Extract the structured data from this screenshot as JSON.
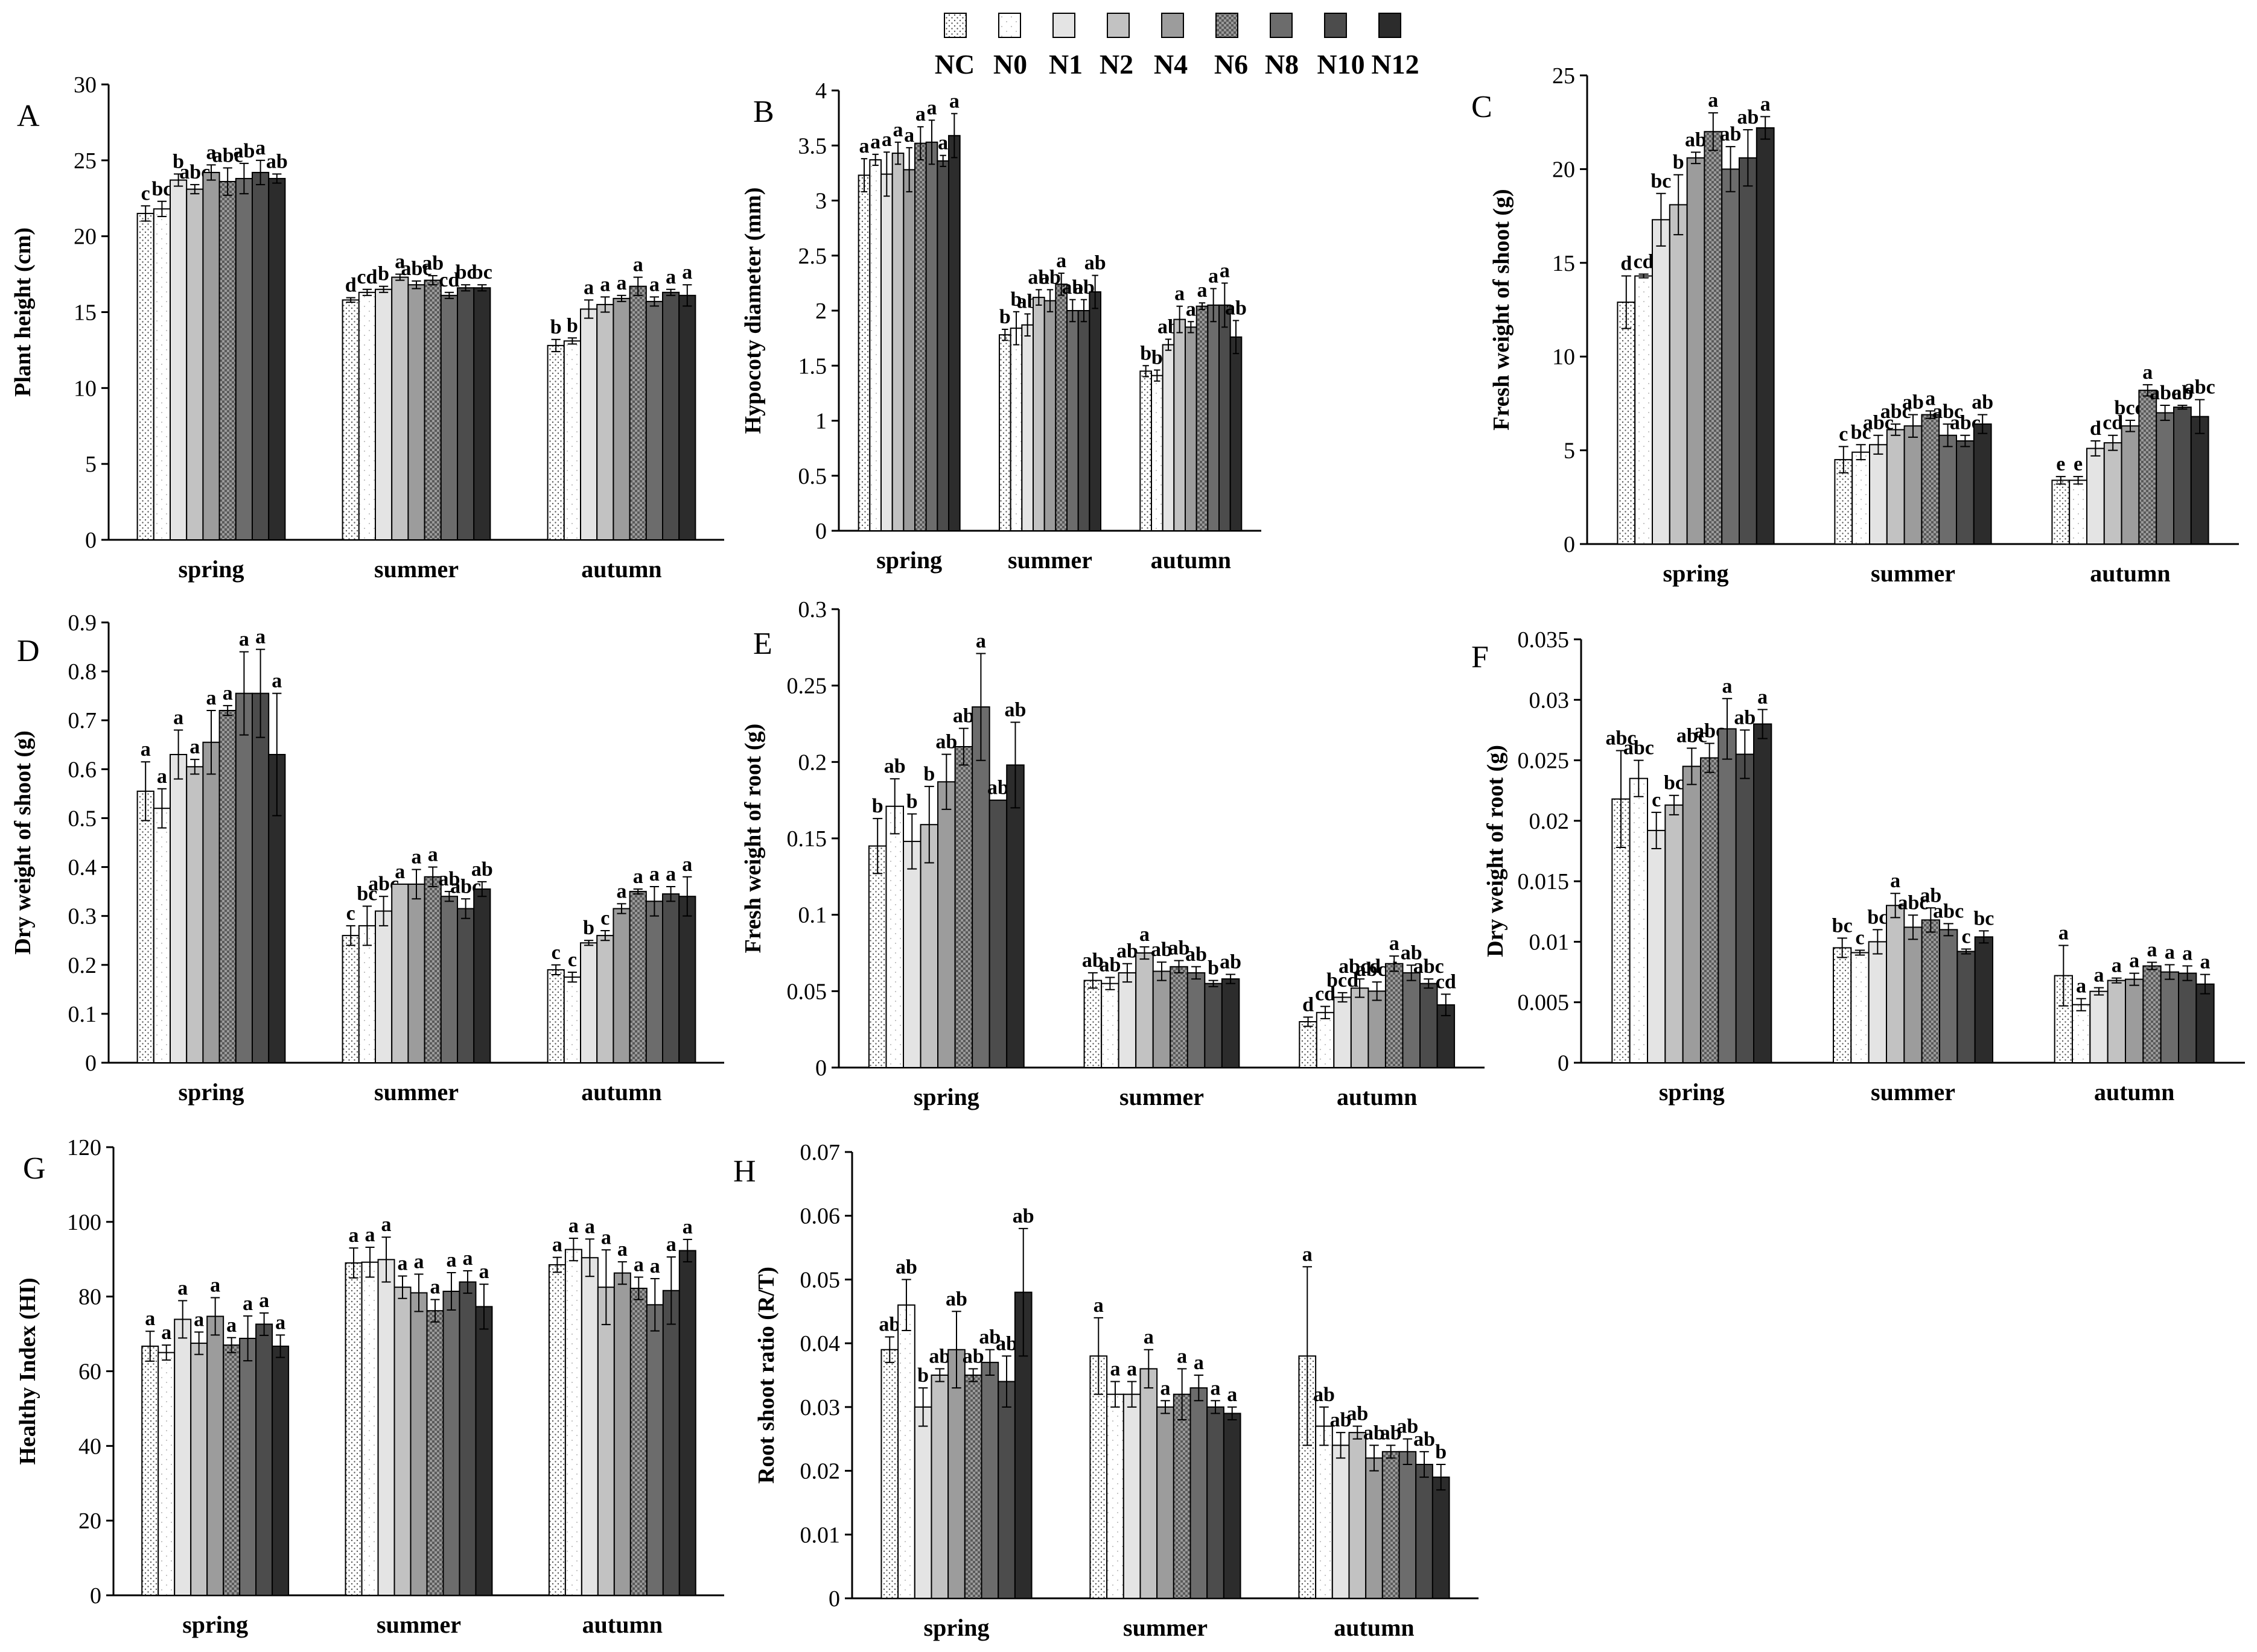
{
  "legend": {
    "entries": [
      "NC",
      "N0",
      "N1",
      "N2",
      "N4",
      "N6",
      "N8",
      "N10",
      "N12"
    ],
    "fills": [
      "#ffffff",
      "#ffffff",
      "#e4e4e4",
      "#c2c2c2",
      "#9c9c9c",
      "#8a8a8a",
      "#6c6c6c",
      "#4c4c4c",
      "#2c2c2c"
    ],
    "patterns": [
      "dots",
      "sparse",
      "none",
      "none",
      "none",
      "checker",
      "none",
      "none",
      "none"
    ]
  },
  "chart_data": [
    {
      "panel": "A",
      "type": "bar",
      "ylabel": "Plant height (cm)",
      "ylim": [
        0,
        30
      ],
      "yticks": [
        "0",
        "5",
        "10",
        "15",
        "20",
        "25",
        "30"
      ],
      "categories": [
        "spring",
        "summer",
        "autumn"
      ],
      "groups": [
        {
          "values": [
            21.5,
            21.8,
            23.7,
            23.1,
            24.2,
            23.6,
            23.8,
            24.2,
            23.8
          ],
          "errors": [
            0.5,
            0.5,
            0.4,
            0.3,
            0.5,
            0.9,
            1.0,
            0.8,
            0.3
          ],
          "letters": [
            "c",
            "bc",
            "b",
            "abc",
            "a",
            "abc",
            "ab",
            "a",
            "ab"
          ]
        },
        {
          "values": [
            15.8,
            16.3,
            16.5,
            17.3,
            16.8,
            17.1,
            16.1,
            16.6,
            16.6
          ],
          "errors": [
            0.15,
            0.2,
            0.2,
            0.2,
            0.25,
            0.3,
            0.2,
            0.2,
            0.2
          ],
          "letters": [
            "d",
            "cd",
            "b",
            "a",
            "abc",
            "ab",
            "cd",
            "bc",
            "bc"
          ]
        },
        {
          "values": [
            12.8,
            13.1,
            15.2,
            15.5,
            15.9,
            16.7,
            15.7,
            16.3,
            16.1
          ],
          "errors": [
            0.4,
            0.2,
            0.6,
            0.5,
            0.2,
            0.6,
            0.3,
            0.2,
            0.7
          ],
          "letters": [
            "b",
            "b",
            "a",
            "a",
            "a",
            "a",
            "a",
            "a",
            "a"
          ]
        }
      ]
    },
    {
      "panel": "B",
      "type": "bar",
      "ylabel": "Hypocoty diameter (mm)",
      "ylim": [
        0,
        4
      ],
      "yticks": [
        "0",
        "0.5",
        "1",
        "1.5",
        "2",
        "2.5",
        "3",
        "3.5",
        "4"
      ],
      "categories": [
        "spring",
        "summer",
        "autumn"
      ],
      "groups": [
        {
          "values": [
            3.23,
            3.37,
            3.24,
            3.43,
            3.28,
            3.52,
            3.53,
            3.36,
            3.59
          ],
          "errors": [
            0.15,
            0.05,
            0.2,
            0.1,
            0.2,
            0.15,
            0.2,
            0.05,
            0.2
          ],
          "letters": [
            "a",
            "a",
            "a",
            "a",
            "a",
            "a",
            "a",
            "a",
            "a"
          ]
        },
        {
          "values": [
            1.78,
            1.84,
            1.87,
            2.12,
            2.09,
            2.24,
            2.0,
            2.0,
            2.17
          ],
          "errors": [
            0.05,
            0.15,
            0.1,
            0.07,
            0.1,
            0.1,
            0.1,
            0.1,
            0.15
          ],
          "letters": [
            "b",
            "b",
            "ab",
            "ab",
            "ab",
            "a",
            "ab",
            "ab",
            "ab"
          ]
        },
        {
          "values": [
            1.45,
            1.41,
            1.69,
            1.92,
            1.85,
            2.04,
            2.05,
            2.05,
            1.76
          ],
          "errors": [
            0.05,
            0.05,
            0.05,
            0.12,
            0.05,
            0.03,
            0.15,
            0.2,
            0.15
          ],
          "letters": [
            "b",
            "b",
            "ab",
            "a",
            "a",
            "a",
            "a",
            "a",
            "ab"
          ]
        }
      ]
    },
    {
      "panel": "C",
      "type": "bar",
      "ylabel": "Fresh weight of shoot (g)",
      "ylim": [
        0,
        25
      ],
      "yticks": [
        "0",
        "5",
        "10",
        "15",
        "20",
        "25"
      ],
      "categories": [
        "spring",
        "summer",
        "autumn"
      ],
      "groups": [
        {
          "values": [
            12.9,
            14.3,
            17.3,
            18.1,
            20.6,
            22.0,
            20.0,
            20.6,
            22.2
          ],
          "errors": [
            1.4,
            0.1,
            1.4,
            1.6,
            0.3,
            1.0,
            1.2,
            1.5,
            0.6
          ],
          "letters": [
            "d",
            "cd",
            "bc",
            "b",
            "ab",
            "a",
            "ab",
            "ab",
            "a"
          ]
        },
        {
          "values": [
            4.5,
            4.9,
            5.3,
            6.1,
            6.3,
            6.9,
            5.8,
            5.5,
            6.4
          ],
          "errors": [
            0.7,
            0.4,
            0.5,
            0.3,
            0.6,
            0.2,
            0.6,
            0.3,
            0.5
          ],
          "letters": [
            "c",
            "bc",
            "abc",
            "abc",
            "ab",
            "a",
            "abc",
            "abc",
            "ab"
          ]
        },
        {
          "values": [
            3.4,
            3.4,
            5.1,
            5.4,
            6.3,
            8.2,
            7.0,
            7.3,
            6.8
          ],
          "errors": [
            0.2,
            0.2,
            0.4,
            0.4,
            0.3,
            0.3,
            0.4,
            0.1,
            0.9
          ],
          "letters": [
            "e",
            "e",
            "d",
            "cd",
            "bcd",
            "a",
            "abc",
            "ab",
            "abc"
          ]
        }
      ]
    },
    {
      "panel": "D",
      "type": "bar",
      "ylabel": "Dry weight of shoot (g)",
      "ylim": [
        0,
        0.9
      ],
      "yticks": [
        "0",
        "0.1",
        "0.2",
        "0.3",
        "0.4",
        "0.5",
        "0.6",
        "0.7",
        "0.8",
        "0.9"
      ],
      "categories": [
        "spring",
        "summer",
        "autumn"
      ],
      "groups": [
        {
          "values": [
            0.555,
            0.52,
            0.63,
            0.605,
            0.655,
            0.72,
            0.755,
            0.755,
            0.63
          ],
          "errors": [
            0.06,
            0.04,
            0.05,
            0.015,
            0.065,
            0.01,
            0.085,
            0.09,
            0.125
          ],
          "letters": [
            "a",
            "a",
            "a",
            "a",
            "a",
            "a",
            "a",
            "a",
            "a"
          ]
        },
        {
          "values": [
            0.26,
            0.28,
            0.31,
            0.365,
            0.365,
            0.38,
            0.34,
            0.315,
            0.355
          ],
          "errors": [
            0.02,
            0.04,
            0.03,
            0.0,
            0.03,
            0.02,
            0.01,
            0.02,
            0.015
          ],
          "letters": [
            "c",
            "bc",
            "abc",
            "a",
            "a",
            "a",
            "ab",
            "abc",
            "ab"
          ]
        },
        {
          "values": [
            0.19,
            0.175,
            0.245,
            0.26,
            0.315,
            0.35,
            0.33,
            0.345,
            0.34
          ],
          "errors": [
            0.01,
            0.01,
            0.005,
            0.01,
            0.01,
            0.005,
            0.03,
            0.015,
            0.04
          ],
          "letters": [
            "c",
            "c",
            "b",
            "c",
            "a",
            "a",
            "a",
            "a",
            "a"
          ]
        }
      ]
    },
    {
      "panel": "E",
      "type": "bar",
      "ylabel": "Fresh weight of root (g)",
      "ylim": [
        0,
        0.3
      ],
      "yticks": [
        "0",
        "0.05",
        "0.1",
        "0.15",
        "0.2",
        "0.25",
        "0.3"
      ],
      "categories": [
        "spring",
        "summer",
        "autumn"
      ],
      "groups": [
        {
          "values": [
            0.145,
            0.171,
            0.148,
            0.159,
            0.187,
            0.21,
            0.236,
            0.175,
            0.198
          ],
          "errors": [
            0.018,
            0.018,
            0.018,
            0.025,
            0.018,
            0.012,
            0.035,
            0.0,
            0.028
          ],
          "letters": [
            "b",
            "ab",
            "b",
            "b",
            "ab",
            "ab",
            "a",
            "ab",
            "ab"
          ]
        },
        {
          "values": [
            0.057,
            0.055,
            0.062,
            0.075,
            0.063,
            0.066,
            0.062,
            0.055,
            0.058
          ],
          "errors": [
            0.005,
            0.004,
            0.006,
            0.004,
            0.006,
            0.004,
            0.004,
            0.002,
            0.003
          ],
          "letters": [
            "ab",
            "ab",
            "ab",
            "a",
            "ab",
            "ab",
            "ab",
            "b",
            "ab"
          ]
        },
        {
          "values": [
            0.03,
            0.036,
            0.046,
            0.052,
            0.05,
            0.068,
            0.062,
            0.055,
            0.041
          ],
          "errors": [
            0.003,
            0.004,
            0.003,
            0.006,
            0.006,
            0.005,
            0.005,
            0.003,
            0.007
          ],
          "letters": [
            "d",
            "cd",
            "bcd",
            "abcd",
            "abcd",
            "a",
            "ab",
            "abc",
            "cd"
          ]
        }
      ]
    },
    {
      "panel": "F",
      "type": "bar",
      "ylabel": "Dry weight of root (g)",
      "ylim": [
        0,
        0.035
      ],
      "yticks": [
        "0",
        "0.005",
        "0.01",
        "0.015",
        "0.02",
        "0.025",
        "0.03",
        "0.035"
      ],
      "categories": [
        "spring",
        "summer",
        "autumn"
      ],
      "groups": [
        {
          "values": [
            0.0218,
            0.0235,
            0.0192,
            0.0213,
            0.0245,
            0.0252,
            0.0276,
            0.0255,
            0.028
          ],
          "errors": [
            0.004,
            0.0015,
            0.0015,
            0.0008,
            0.0015,
            0.0012,
            0.0025,
            0.002,
            0.0012
          ],
          "letters": [
            "abc",
            "abc",
            "c",
            "bc",
            "abc",
            "abc",
            "a",
            "ab",
            "a"
          ]
        },
        {
          "values": [
            0.0095,
            0.0091,
            0.01,
            0.013,
            0.0112,
            0.0118,
            0.011,
            0.0092,
            0.0104
          ],
          "errors": [
            0.0008,
            0.0002,
            0.001,
            0.001,
            0.001,
            0.001,
            0.0005,
            0.0002,
            0.0005
          ],
          "letters": [
            "bc",
            "c",
            "bc",
            "a",
            "abc",
            "ab",
            "abc",
            "c",
            "bc"
          ]
        },
        {
          "values": [
            0.0072,
            0.0048,
            0.0059,
            0.0068,
            0.0069,
            0.008,
            0.0075,
            0.0074,
            0.0065
          ],
          "errors": [
            0.0025,
            0.0005,
            0.0003,
            0.0002,
            0.0005,
            0.0003,
            0.0006,
            0.0006,
            0.0008
          ],
          "letters": [
            "a",
            "a",
            "a",
            "a",
            "a",
            "a",
            "a",
            "a",
            "a"
          ]
        }
      ]
    },
    {
      "panel": "G",
      "type": "bar",
      "ylabel": "Healthy Index (HI)",
      "ylim": [
        0,
        120
      ],
      "yticks": [
        "0",
        "20",
        "40",
        "60",
        "80",
        "100",
        "120"
      ],
      "categories": [
        "spring",
        "summer",
        "autumn"
      ],
      "groups": [
        {
          "values": [
            66.7,
            65.0,
            73.9,
            67.5,
            74.7,
            67.0,
            68.8,
            72.6,
            66.7
          ],
          "errors": [
            4,
            2,
            5,
            3,
            5,
            2,
            6,
            3,
            3
          ],
          "letters": [
            "a",
            "a",
            "a",
            "a",
            "a",
            "a",
            "a",
            "a",
            "a"
          ]
        },
        {
          "values": [
            89.0,
            89.2,
            89.9,
            82.5,
            81.0,
            76.2,
            81.4,
            83.9,
            77.3
          ],
          "errors": [
            4,
            4,
            6,
            3,
            5,
            3,
            5,
            3,
            6
          ],
          "letters": [
            "a",
            "a",
            "a",
            "a",
            "a",
            "a",
            "a",
            "a",
            "a"
          ]
        },
        {
          "values": [
            88.5,
            92.6,
            90.4,
            82.5,
            86.3,
            82.2,
            77.8,
            81.6,
            92.3
          ],
          "errors": [
            2,
            3,
            5,
            10,
            3,
            3,
            7,
            9,
            3
          ],
          "letters": [
            "a",
            "a",
            "a",
            "a",
            "a",
            "a",
            "a",
            "a",
            "a"
          ]
        }
      ]
    },
    {
      "panel": "H",
      "type": "bar",
      "ylabel": "Root shoot ratio (R/T)",
      "ylim": [
        0,
        0.07
      ],
      "yticks": [
        "0",
        "0.01",
        "0.02",
        "0.03",
        "0.04",
        "0.05",
        "0.06",
        "0.07"
      ],
      "categories": [
        "spring",
        "summer",
        "autumn"
      ],
      "groups": [
        {
          "values": [
            0.039,
            0.046,
            0.03,
            0.035,
            0.039,
            0.035,
            0.037,
            0.034,
            0.048
          ],
          "errors": [
            0.002,
            0.004,
            0.003,
            0.001,
            0.006,
            0.001,
            0.002,
            0.004,
            0.01
          ],
          "letters": [
            "ab",
            "ab",
            "b",
            "ab",
            "ab",
            "ab",
            "ab",
            "ab",
            "ab"
          ]
        },
        {
          "values": [
            0.038,
            0.032,
            0.032,
            0.036,
            0.03,
            0.032,
            0.033,
            0.03,
            0.029
          ],
          "errors": [
            0.006,
            0.002,
            0.002,
            0.003,
            0.001,
            0.004,
            0.002,
            0.001,
            0.001
          ],
          "letters": [
            "a",
            "a",
            "a",
            "a",
            "a",
            "a",
            "a",
            "a",
            "a"
          ]
        },
        {
          "values": [
            0.038,
            0.027,
            0.024,
            0.026,
            0.022,
            0.023,
            0.023,
            0.021,
            0.019
          ],
          "errors": [
            0.014,
            0.003,
            0.002,
            0.001,
            0.002,
            0.001,
            0.002,
            0.002,
            0.002
          ],
          "letters": [
            "a",
            "ab",
            "ab",
            "ab",
            "ab",
            "ab",
            "ab",
            "ab",
            "b"
          ]
        }
      ]
    }
  ]
}
